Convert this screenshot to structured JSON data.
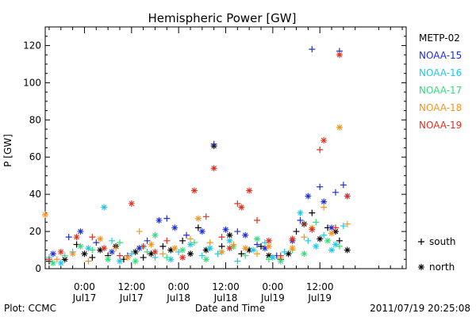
{
  "chart_data": {
    "type": "scatter",
    "title": "Hemispheric Power [GW]",
    "ylabel": "P [GW]",
    "xlabel": "Date and Time",
    "ylim": [
      0,
      130
    ],
    "yticks": [
      0,
      20,
      40,
      60,
      80,
      100,
      120
    ],
    "xlim": [
      -10,
      82
    ],
    "x_unit": "hours since 2011/07/17 00:00",
    "xticks": [
      {
        "x": 0,
        "time": "0:00",
        "date": "Jul17"
      },
      {
        "x": 12,
        "time": "12:00",
        "date": "Jul17"
      },
      {
        "x": 24,
        "time": "0:00",
        "date": "Jul18"
      },
      {
        "x": 36,
        "time": "12:00",
        "date": "Jul18"
      },
      {
        "x": 48,
        "time": "0:00",
        "date": "Jul19"
      },
      {
        "x": 60,
        "time": "12:00",
        "date": "Jul19"
      }
    ],
    "markers": {
      "south": "+",
      "north": "*"
    },
    "marker_legend": [
      {
        "symbol": "+",
        "label": "south"
      },
      {
        "symbol": "*",
        "label": "north"
      }
    ],
    "grid": false,
    "legend_position": "right",
    "series": [
      {
        "name": "METP-02",
        "color": "#000000",
        "points": [
          [
            -9,
            4,
            "+"
          ],
          [
            -5,
            5,
            "*"
          ],
          [
            -2,
            13,
            "+"
          ],
          [
            0,
            8,
            "*"
          ],
          [
            2,
            6,
            "+"
          ],
          [
            4,
            10,
            "*"
          ],
          [
            6,
            7,
            "+"
          ],
          [
            8,
            12,
            "*"
          ],
          [
            10,
            5,
            "+"
          ],
          [
            13,
            9,
            "*"
          ],
          [
            15,
            6,
            "+"
          ],
          [
            17,
            8,
            "*"
          ],
          [
            20,
            12,
            "+"
          ],
          [
            22,
            10,
            "*"
          ],
          [
            25,
            15,
            "+"
          ],
          [
            27,
            8,
            "*"
          ],
          [
            29,
            22,
            "+"
          ],
          [
            31,
            10,
            "*"
          ],
          [
            33,
            66,
            "*"
          ],
          [
            35,
            12,
            "+"
          ],
          [
            37,
            18,
            "*"
          ],
          [
            40,
            8,
            "+"
          ],
          [
            42,
            10,
            "*"
          ],
          [
            45,
            12,
            "+"
          ],
          [
            47,
            7,
            "*"
          ],
          [
            50,
            5,
            "+"
          ],
          [
            52,
            8,
            "*"
          ],
          [
            54,
            20,
            "+"
          ],
          [
            56,
            24,
            "*"
          ],
          [
            58,
            30,
            "+"
          ],
          [
            60,
            16,
            "*"
          ],
          [
            62,
            22,
            "+"
          ],
          [
            64,
            20,
            "*"
          ],
          [
            65,
            15,
            "+"
          ],
          [
            67,
            10,
            "*"
          ]
        ]
      },
      {
        "name": "NOAA-15",
        "color": "#1f2fd8",
        "points": [
          [
            -8,
            8,
            "*"
          ],
          [
            -4,
            17,
            "+"
          ],
          [
            -1,
            20,
            "*"
          ],
          [
            3,
            14,
            "+"
          ],
          [
            7,
            9,
            "*"
          ],
          [
            11,
            7,
            "+"
          ],
          [
            14,
            11,
            "*"
          ],
          [
            16,
            15,
            "+"
          ],
          [
            19,
            26,
            "*"
          ],
          [
            21,
            27,
            "+"
          ],
          [
            23,
            22,
            "*"
          ],
          [
            26,
            18,
            "+"
          ],
          [
            30,
            20,
            "*"
          ],
          [
            33,
            67,
            "+"
          ],
          [
            36,
            21,
            "*"
          ],
          [
            39,
            20,
            "+"
          ],
          [
            41,
            18,
            "*"
          ],
          [
            44,
            13,
            "+"
          ],
          [
            46,
            11,
            "*"
          ],
          [
            49,
            7,
            "+"
          ],
          [
            53,
            15,
            "*"
          ],
          [
            55,
            26,
            "+"
          ],
          [
            57,
            39,
            "*"
          ],
          [
            58,
            118,
            "+"
          ],
          [
            60,
            44,
            "+"
          ],
          [
            61,
            36,
            "*"
          ],
          [
            64,
            41,
            "+"
          ],
          [
            65,
            117,
            "+"
          ],
          [
            66,
            45,
            "+"
          ],
          [
            67,
            39,
            "*"
          ],
          [
            63,
            22,
            "*"
          ]
        ]
      },
      {
        "name": "NOAA-16",
        "color": "#1fc8e8",
        "points": [
          [
            -9,
            6,
            "+"
          ],
          [
            -6,
            3,
            "*"
          ],
          [
            -3,
            9,
            "+"
          ],
          [
            1,
            11,
            "*"
          ],
          [
            5,
            33,
            "*"
          ],
          [
            7,
            15,
            "+"
          ],
          [
            9,
            4,
            "*"
          ],
          [
            12,
            8,
            "+"
          ],
          [
            15,
            12,
            "*"
          ],
          [
            18,
            6,
            "+"
          ],
          [
            22,
            5,
            "*"
          ],
          [
            24,
            9,
            "+"
          ],
          [
            27,
            13,
            "*"
          ],
          [
            30,
            7,
            "+"
          ],
          [
            32,
            11,
            "*"
          ],
          [
            34,
            8,
            "+"
          ],
          [
            37,
            15,
            "*"
          ],
          [
            39,
            4,
            "+"
          ],
          [
            43,
            10,
            "*"
          ],
          [
            46,
            14,
            "+"
          ],
          [
            48,
            6,
            "*"
          ],
          [
            51,
            9,
            "+"
          ],
          [
            55,
            30,
            "*"
          ],
          [
            57,
            15,
            "+"
          ],
          [
            59,
            12,
            "*"
          ],
          [
            61,
            18,
            "+"
          ],
          [
            63,
            10,
            "*"
          ],
          [
            66,
            23,
            "+"
          ],
          [
            64,
            13,
            "*"
          ]
        ]
      },
      {
        "name": "NOAA-17",
        "color": "#30e07a",
        "points": [
          [
            -8,
            3,
            "*"
          ],
          [
            -5,
            7,
            "+"
          ],
          [
            -1,
            12,
            "*"
          ],
          [
            2,
            10,
            "+"
          ],
          [
            6,
            5,
            "*"
          ],
          [
            9,
            14,
            "+"
          ],
          [
            13,
            4,
            "*"
          ],
          [
            16,
            9,
            "+"
          ],
          [
            18,
            18,
            "*"
          ],
          [
            21,
            6,
            "+"
          ],
          [
            25,
            10,
            "*"
          ],
          [
            28,
            14,
            "+"
          ],
          [
            31,
            5,
            "*"
          ],
          [
            35,
            9,
            "+"
          ],
          [
            38,
            12,
            "*"
          ],
          [
            41,
            7,
            "+"
          ],
          [
            44,
            16,
            "*"
          ],
          [
            47,
            5,
            "+"
          ],
          [
            50,
            4,
            "*"
          ],
          [
            53,
            10,
            "+"
          ],
          [
            56,
            8,
            "*"
          ],
          [
            59,
            25,
            "+"
          ],
          [
            62,
            15,
            "*"
          ],
          [
            65,
            12,
            "+"
          ]
        ]
      },
      {
        "name": "NOAA-18",
        "color": "#f7941d",
        "points": [
          [
            -10,
            29,
            "*"
          ],
          [
            -7,
            5,
            "+"
          ],
          [
            -3,
            8,
            "*"
          ],
          [
            1,
            4,
            "+"
          ],
          [
            4,
            16,
            "*"
          ],
          [
            8,
            11,
            "+"
          ],
          [
            11,
            6,
            "*"
          ],
          [
            14,
            20,
            "+"
          ],
          [
            17,
            13,
            "*"
          ],
          [
            20,
            8,
            "+"
          ],
          [
            23,
            11,
            "*"
          ],
          [
            27,
            16,
            "+"
          ],
          [
            29,
            27,
            "*"
          ],
          [
            32,
            14,
            "+"
          ],
          [
            35,
            9,
            "*"
          ],
          [
            38,
            13,
            "+"
          ],
          [
            41,
            11,
            "*"
          ],
          [
            44,
            8,
            "+"
          ],
          [
            47,
            12,
            "*"
          ],
          [
            50,
            6,
            "+"
          ],
          [
            53,
            11,
            "*"
          ],
          [
            56,
            17,
            "+"
          ],
          [
            58,
            22,
            "*"
          ],
          [
            61,
            33,
            "+"
          ],
          [
            63,
            19,
            "*"
          ],
          [
            65,
            76,
            "*"
          ],
          [
            67,
            24,
            "+"
          ]
        ]
      },
      {
        "name": "NOAA-19",
        "color": "#e03020",
        "points": [
          [
            -9,
            5,
            "+"
          ],
          [
            -6,
            9,
            "*"
          ],
          [
            -2,
            17,
            "*"
          ],
          [
            2,
            17,
            "+"
          ],
          [
            5,
            11,
            "*"
          ],
          [
            9,
            7,
            "+"
          ],
          [
            12,
            35,
            "*"
          ],
          [
            15,
            12,
            "+"
          ],
          [
            18,
            9,
            "*"
          ],
          [
            21,
            15,
            "+"
          ],
          [
            25,
            6,
            "*"
          ],
          [
            28,
            42,
            "*"
          ],
          [
            31,
            28,
            "+"
          ],
          [
            33,
            54,
            "*"
          ],
          [
            35,
            17,
            "+"
          ],
          [
            37,
            11,
            "*"
          ],
          [
            39,
            35,
            "+"
          ],
          [
            40,
            33,
            "*"
          ],
          [
            42,
            42,
            "*"
          ],
          [
            44,
            26,
            "+"
          ],
          [
            47,
            15,
            "*"
          ],
          [
            50,
            7,
            "+"
          ],
          [
            53,
            16,
            "*"
          ],
          [
            56,
            24,
            "+"
          ],
          [
            58,
            21,
            "*"
          ],
          [
            60,
            64,
            "+"
          ],
          [
            61,
            69,
            "*"
          ],
          [
            64,
            22,
            "+"
          ],
          [
            65,
            115,
            "*"
          ],
          [
            67,
            39,
            "*"
          ]
        ]
      }
    ]
  },
  "footer": {
    "plot_credit": "Plot: CCMC",
    "timestamp": "2011/07/19 20:25:08"
  }
}
